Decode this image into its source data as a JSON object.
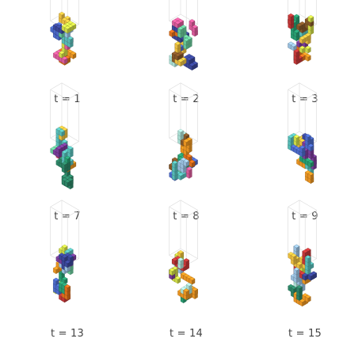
{
  "palette": [
    "#3d4aa0",
    "#5bc4bf",
    "#7e3fa0",
    "#e2721d",
    "#f29a24",
    "#2f8a6a",
    "#d6e34a",
    "#c93a3a",
    "#e25fa0",
    "#9fc7e8",
    "#2aa376",
    "#8a5a2b",
    "#f4c542",
    "#6cd0a0",
    "#4f6fd1",
    "#b2e8dc"
  ],
  "panels": [
    {
      "caption": "t = 1",
      "seed": 11
    },
    {
      "caption": "t = 2",
      "seed": 23
    },
    {
      "caption": "t = 3",
      "seed": 37
    },
    {
      "caption": "t = 7",
      "seed": 71
    },
    {
      "caption": "t = 8",
      "seed": 83
    },
    {
      "caption": "t = 9",
      "seed": 97
    },
    {
      "caption": "t = 13",
      "seed": 131
    },
    {
      "caption": "t = 14",
      "seed": 149
    },
    {
      "caption": "t = 15",
      "seed": 157
    }
  ]
}
